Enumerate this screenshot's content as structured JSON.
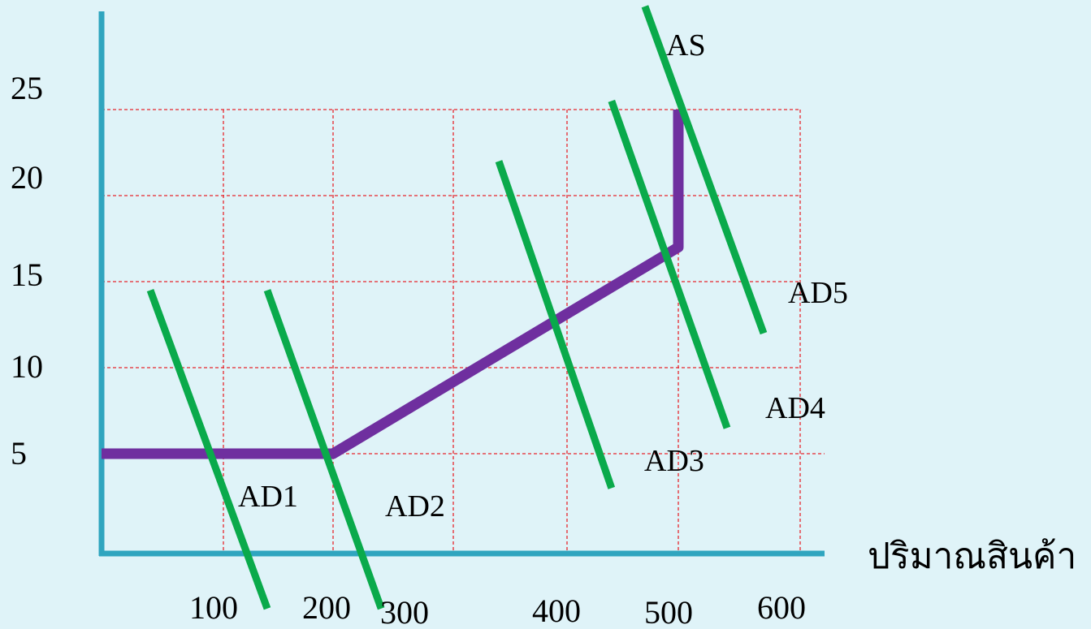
{
  "chart_data": {
    "type": "line",
    "xlabel": "ปริมาณสินค้า",
    "ylabel": "",
    "x_ticks": [
      {
        "value": 100,
        "label": "100"
      },
      {
        "value": 200,
        "label": "200"
      },
      {
        "value": 300,
        "label": "300"
      },
      {
        "value": 400,
        "label": "400"
      },
      {
        "value": 500,
        "label": "500"
      },
      {
        "value": 600,
        "label": "600"
      }
    ],
    "y_ticks": [
      {
        "value": 5,
        "label": "5"
      },
      {
        "value": 10,
        "label": "10"
      },
      {
        "value": 15,
        "label": "15"
      },
      {
        "value": 20,
        "label": "20"
      },
      {
        "value": 25,
        "label": "25"
      }
    ],
    "grid": true,
    "series": [
      {
        "name": "AS",
        "color": "#6f2f9f",
        "points": [
          [
            0,
            5
          ],
          [
            200,
            5
          ],
          [
            500,
            17
          ],
          [
            500,
            25
          ]
        ]
      },
      {
        "name": "AD1",
        "color": "#0aaa4b",
        "points": [
          [
            40,
            14.5
          ],
          [
            140,
            -4
          ]
        ]
      },
      {
        "name": "AD2",
        "color": "#0aaa4b",
        "points": [
          [
            140,
            14.5
          ],
          [
            240,
            -4
          ]
        ]
      },
      {
        "name": "AD3",
        "color": "#0aaa4b",
        "points": [
          [
            340,
            22
          ],
          [
            440,
            3
          ]
        ]
      },
      {
        "name": "AD4",
        "color": "#0aaa4b",
        "points": [
          [
            440,
            25.5
          ],
          [
            540,
            6.5
          ]
        ]
      },
      {
        "name": "AD5",
        "color": "#0aaa4b",
        "points": [
          [
            470,
            31
          ],
          [
            570,
            12
          ]
        ]
      }
    ]
  }
}
